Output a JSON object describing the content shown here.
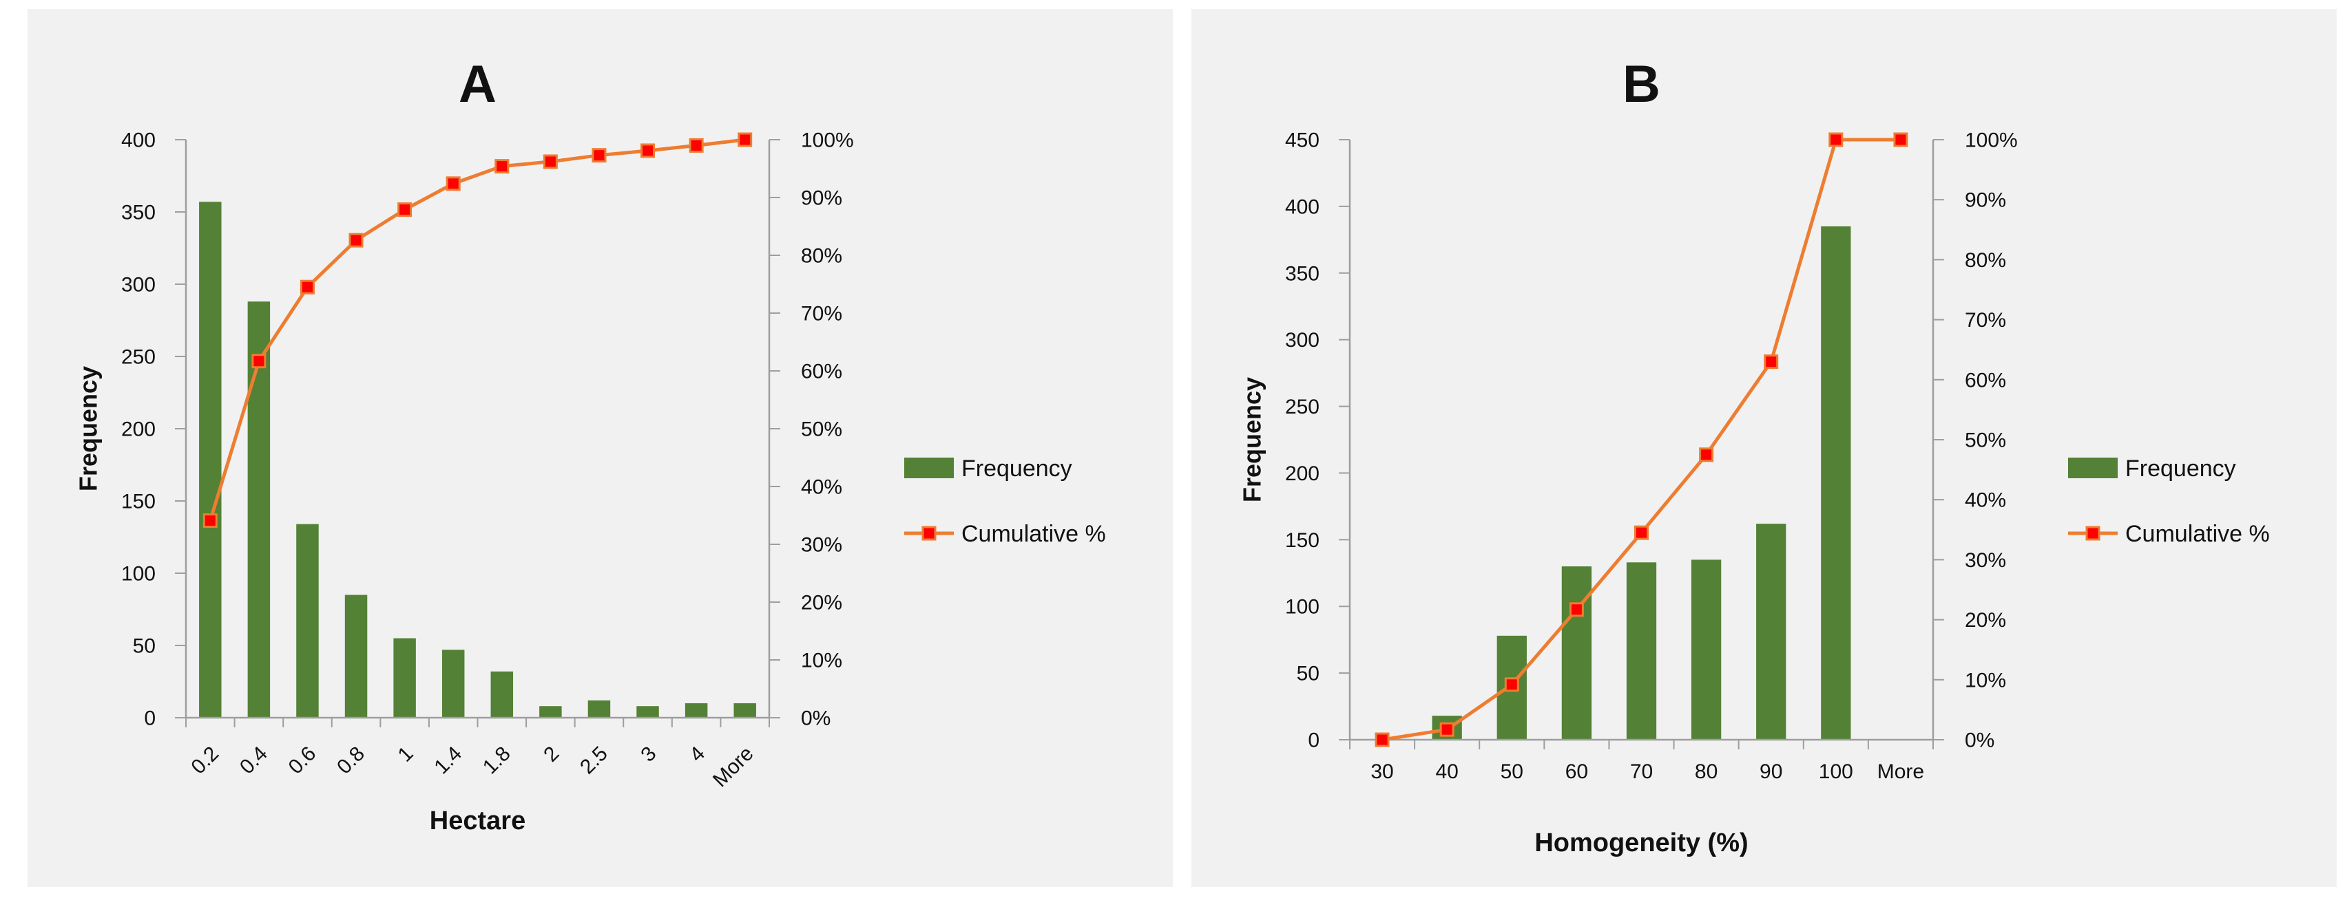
{
  "page": {
    "background": "#ffffff",
    "panel_background": "#f1f1f1"
  },
  "colors": {
    "bar_green": "#538135",
    "line_orange": "#ed7d31",
    "marker_red": "#ff0000",
    "axis_gray": "#9e9e9e",
    "text": "#111111"
  },
  "chart_data": [
    {
      "id": "A",
      "type": "bar",
      "subtype": "pareto",
      "title": "A",
      "xlabel": "Hectare",
      "ylabel": "Frequency",
      "categories": [
        "0.2",
        "0.4",
        "0.6",
        "0.8",
        "1",
        "1.4",
        "1.8",
        "2",
        "2.5",
        "3",
        "4",
        "More"
      ],
      "series": [
        {
          "name": "Frequency",
          "type": "bar",
          "values": [
            357,
            288,
            134,
            85,
            55,
            47,
            32,
            8,
            12,
            8,
            10,
            10
          ]
        },
        {
          "name": "Cumulative %",
          "type": "line",
          "unit": "%",
          "values": [
            34.1,
            61.7,
            74.5,
            82.6,
            87.9,
            92.4,
            95.4,
            96.2,
            97.3,
            98.1,
            99.0,
            100
          ]
        }
      ],
      "y_left": {
        "min": 0,
        "max": 400,
        "step": 50
      },
      "y_right": {
        "min": 0,
        "max": 100,
        "step": 10
      },
      "y_left_ticks": [
        "0",
        "50",
        "100",
        "150",
        "200",
        "250",
        "300",
        "350",
        "400"
      ],
      "y_right_ticks": [
        "0%",
        "10%",
        "20%",
        "30%",
        "40%",
        "50%",
        "60%",
        "70%",
        "80%",
        "90%",
        "100%"
      ],
      "x_tick_rotation_deg": 45,
      "legend_position": "right",
      "legend": [
        "Frequency",
        "Cumulative %"
      ],
      "grid": false
    },
    {
      "id": "B",
      "type": "bar",
      "subtype": "pareto",
      "title": "B",
      "xlabel": "Homogeneity (%)",
      "ylabel": "Frequency",
      "categories": [
        "30",
        "40",
        "50",
        "60",
        "70",
        "80",
        "90",
        "100",
        "More"
      ],
      "series": [
        {
          "name": "Frequency",
          "type": "bar",
          "values": [
            0,
            18,
            78,
            130,
            133,
            135,
            162,
            385,
            0
          ]
        },
        {
          "name": "Cumulative %",
          "type": "line",
          "unit": "%",
          "values": [
            0,
            1.7,
            9.2,
            21.7,
            34.5,
            47.5,
            63.0,
            100,
            100
          ]
        }
      ],
      "y_left": {
        "min": 0,
        "max": 450,
        "step": 50
      },
      "y_right": {
        "min": 0,
        "max": 100,
        "step": 10
      },
      "y_left_ticks": [
        "0",
        "50",
        "100",
        "150",
        "200",
        "250",
        "300",
        "350",
        "400",
        "450"
      ],
      "y_right_ticks": [
        "0%",
        "10%",
        "20%",
        "30%",
        "40%",
        "50%",
        "60%",
        "70%",
        "80%",
        "90%",
        "100%"
      ],
      "x_tick_rotation_deg": 0,
      "legend_position": "right",
      "legend": [
        "Frequency",
        "Cumulative %"
      ],
      "grid": false
    }
  ]
}
